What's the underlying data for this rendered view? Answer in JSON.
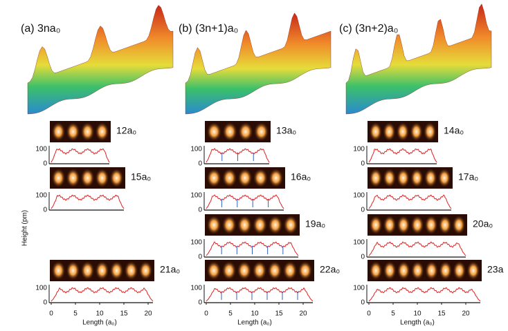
{
  "panels": [
    {
      "label": "(a) 3na₀",
      "samples": [
        {
          "label": "12a₀"
        },
        {
          "label": "15a₀"
        },
        {
          "label": "21a₀"
        }
      ]
    },
    {
      "label": "(b) (3n+1)a₀",
      "samples": [
        {
          "label": "13a₀"
        },
        {
          "label": "16a₀"
        },
        {
          "label": "19a₀"
        },
        {
          "label": "22a₀"
        }
      ]
    },
    {
      "label": "(c) (3n+2)a₀",
      "samples": [
        {
          "label": "14a₀"
        },
        {
          "label": "17a₀"
        },
        {
          "label": "20a₀"
        },
        {
          "label": "23a"
        }
      ]
    }
  ],
  "height_ticks": [
    "100",
    "0"
  ],
  "length_ticks": [
    "0",
    "5",
    "10",
    "15",
    "20"
  ],
  "x_axis_label": "Length (a₀)",
  "y_axis_label": "Height (pm)"
}
